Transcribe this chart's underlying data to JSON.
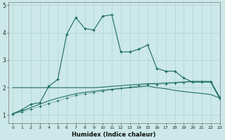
{
  "xlabel": "Humidex (Indice chaleur)",
  "background_color": "#cce8e8",
  "line_color": "#1a6b5e",
  "grid_color": "#aed4d4",
  "xlim": [
    -0.5,
    23
  ],
  "ylim": [
    0.7,
    5.1
  ],
  "yticks": [
    1,
    2,
    3,
    4,
    5
  ],
  "xticks": [
    0,
    1,
    2,
    3,
    4,
    5,
    6,
    7,
    8,
    9,
    10,
    11,
    12,
    13,
    14,
    15,
    16,
    17,
    18,
    19,
    20,
    21,
    22,
    23
  ],
  "series1_x": [
    0,
    1,
    2,
    3,
    4,
    5,
    6,
    7,
    8,
    9,
    10,
    11,
    12,
    13,
    14,
    15,
    16,
    17,
    18,
    19,
    20,
    21,
    22,
    23
  ],
  "series1_y": [
    1.05,
    1.2,
    1.4,
    1.45,
    2.05,
    2.3,
    3.95,
    4.55,
    4.15,
    4.1,
    4.6,
    4.65,
    3.3,
    3.3,
    3.4,
    3.55,
    2.7,
    2.6,
    2.6,
    2.35,
    2.2,
    2.2,
    2.2,
    1.6
  ],
  "series2_x": [
    0,
    1,
    2,
    3,
    4,
    5,
    6,
    7,
    8,
    9,
    10,
    11,
    12,
    13,
    14,
    15,
    16,
    17,
    18,
    19,
    20,
    21,
    22,
    23
  ],
  "series2_y": [
    1.05,
    1.12,
    1.22,
    1.32,
    1.42,
    1.52,
    1.62,
    1.72,
    1.77,
    1.82,
    1.87,
    1.92,
    1.97,
    2.02,
    2.07,
    2.12,
    2.12,
    2.14,
    2.16,
    2.18,
    2.2,
    2.2,
    2.2,
    1.65
  ],
  "series3_x": [
    0,
    1,
    2,
    3,
    4,
    5,
    6,
    7,
    8,
    9,
    10,
    11,
    12,
    13,
    14,
    15,
    16,
    17,
    18,
    19,
    20,
    21,
    22,
    23
  ],
  "series3_y": [
    2.0,
    2.0,
    2.0,
    2.0,
    2.0,
    2.0,
    2.0,
    2.0,
    2.0,
    2.0,
    2.02,
    2.05,
    2.07,
    2.1,
    2.12,
    2.15,
    2.15,
    2.17,
    2.19,
    2.21,
    2.23,
    2.23,
    2.23,
    1.65
  ],
  "series4_x": [
    0,
    1,
    2,
    3,
    4,
    5,
    6,
    7,
    8,
    9,
    10,
    11,
    12,
    13,
    14,
    15,
    16,
    17,
    18,
    19,
    20,
    21,
    22,
    23
  ],
  "series4_y": [
    1.05,
    1.15,
    1.28,
    1.4,
    1.52,
    1.62,
    1.7,
    1.78,
    1.83,
    1.87,
    1.91,
    1.94,
    1.97,
    2.0,
    2.03,
    2.06,
    2.0,
    1.96,
    1.9,
    1.86,
    1.82,
    1.79,
    1.75,
    1.62
  ]
}
